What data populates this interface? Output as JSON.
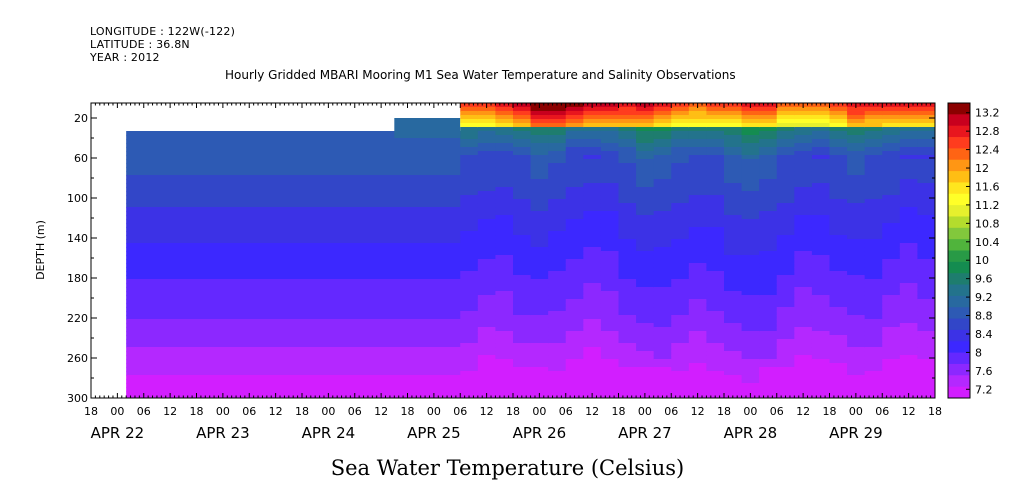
{
  "header": {
    "longitude": "LONGITUDE : 122W(-122)",
    "latitude": "LATITUDE : 36.8N",
    "year": "YEAR : 2012"
  },
  "chart_data": {
    "type": "heatmap",
    "title": "Hourly Gridded MBARI Mooring M1 Sea Water Temperature and Salinity Observations",
    "xlabel": "Sea Water Temperature (Celsius)",
    "ylabel": "DEPTH (m)",
    "x_hour_ticks": [
      "18",
      "00",
      "06",
      "12",
      "18",
      "00",
      "06",
      "12",
      "18",
      "00",
      "06",
      "12",
      "18",
      "00",
      "06",
      "12",
      "18",
      "00",
      "06",
      "12",
      "18",
      "00",
      "06",
      "12",
      "18",
      "00",
      "06",
      "12",
      "18",
      "00",
      "06",
      "12",
      "18"
    ],
    "x_date_labels": [
      "APR 22",
      "APR 23",
      "APR 24",
      "APR 25",
      "APR 26",
      "APR 27",
      "APR 28",
      "APR 29"
    ],
    "xlim": [
      "2012-04-21T18:00",
      "2012-04-29T18:00"
    ],
    "y_ticks": [
      20,
      60,
      100,
      140,
      180,
      220,
      260,
      300
    ],
    "ylim": [
      300,
      5
    ],
    "y_reversed": true,
    "colorbar": {
      "labels": [
        "13.2",
        "12.8",
        "12.4",
        "12",
        "11.6",
        "11.2",
        "10.8",
        "10.4",
        "10",
        "9.6",
        "9.2",
        "8.8",
        "8.4",
        "8",
        "7.6",
        "7.2"
      ],
      "colors": [
        "#8b0000",
        "#c8001e",
        "#e8161e",
        "#ff3c1e",
        "#ff6414",
        "#ff9614",
        "#ffbe14",
        "#ffe61e",
        "#ffff28",
        "#e6f02d",
        "#b4dc2d",
        "#82c83c",
        "#50b43c",
        "#289a46",
        "#148c50",
        "#1e7d6e",
        "#23738c",
        "#2869a0",
        "#2d5ab4",
        "#3246c8",
        "#3c32e6",
        "#3c28ff",
        "#6428ff",
        "#8c28ff",
        "#b428ff",
        "#d21eff"
      ]
    },
    "data_start": "2012-04-22T02:00",
    "upper_data_start_depth_m": 28,
    "dense_data_start": "2012-04-25T06:00",
    "temperature_profile_early_period": [
      {
        "depth_m": 32,
        "temp_c": 9.0
      },
      {
        "depth_m": 80,
        "temp_c": 8.8
      },
      {
        "depth_m": 120,
        "temp_c": 8.5
      },
      {
        "depth_m": 170,
        "temp_c": 8.2
      },
      {
        "depth_m": 220,
        "temp_c": 7.9
      },
      {
        "depth_m": 270,
        "temp_c": 7.5
      },
      {
        "depth_m": 295,
        "temp_c": 7.2
      }
    ],
    "surface_max_temp_c": 13.2,
    "surface_max_time": "2012-04-26T06:00"
  }
}
